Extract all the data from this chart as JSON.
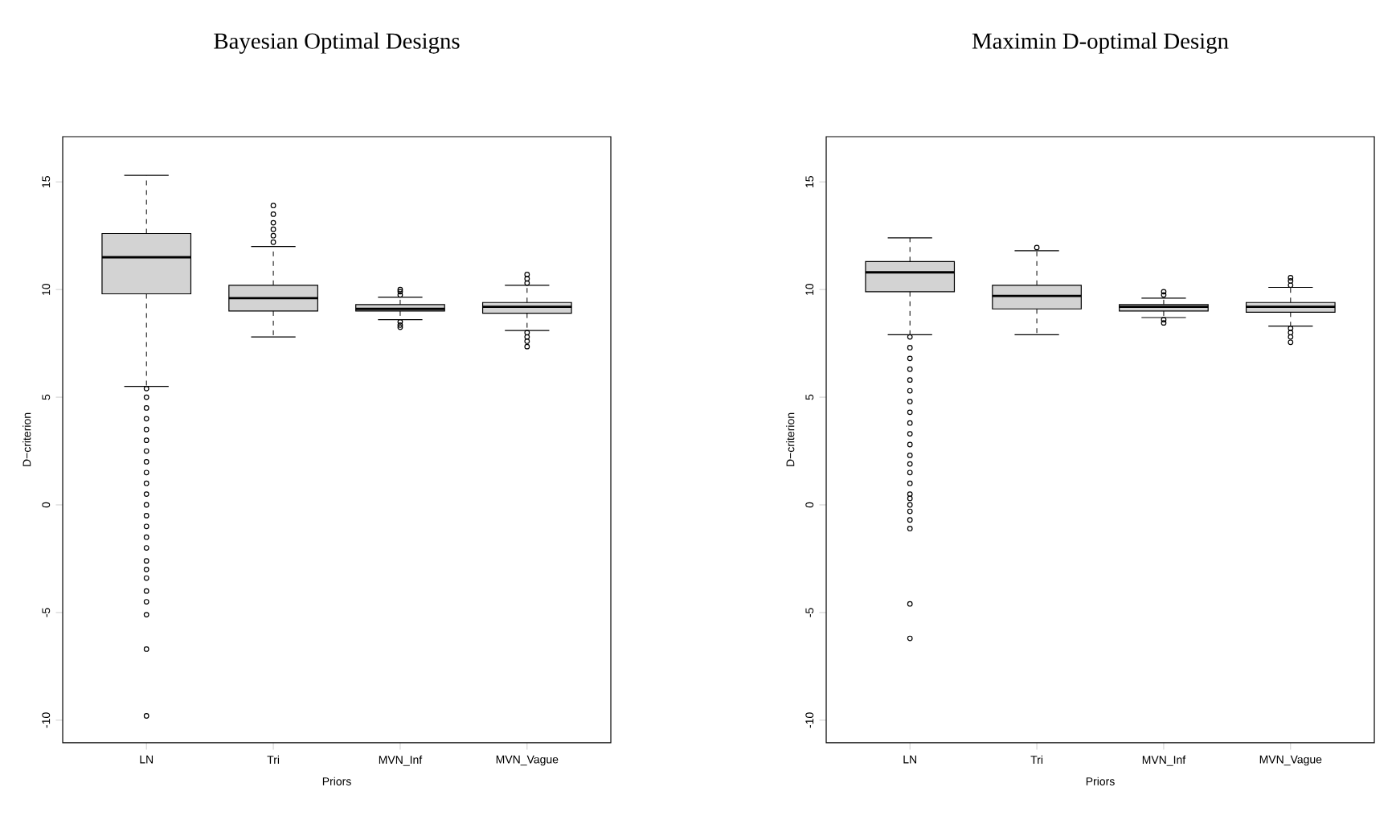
{
  "chart_data": [
    {
      "type": "box",
      "title": "Bayesian Optimal Designs",
      "xlabel": "Priors",
      "ylabel": "D−criterion",
      "color": "#d3d3d3",
      "categories": [
        "LN",
        "Tri",
        "MVN_Inf",
        "MVN_Vague"
      ],
      "ylim": [
        -11.05,
        17.1
      ],
      "yticks": [
        -10,
        -5,
        0,
        5,
        10,
        15
      ],
      "boxes": [
        {
          "low": 5.5,
          "q1": 9.8,
          "median": 11.5,
          "q3": 12.6,
          "high": 15.3,
          "outliers": [
            5.4,
            5,
            4.5,
            4,
            3.5,
            3,
            2.5,
            2,
            1.5,
            1,
            0.5,
            0,
            -0.5,
            -1,
            -1.5,
            -2,
            -2.6,
            -3,
            -3.4,
            -4,
            -4.5,
            -5.1,
            -6.7,
            -9.8
          ]
        },
        {
          "low": 7.8,
          "q1": 9.0,
          "median": 9.6,
          "q3": 10.2,
          "high": 12.0,
          "outliers": [
            12.2,
            12.5,
            12.8,
            13.1,
            13.5,
            13.9
          ]
        },
        {
          "low": 8.6,
          "q1": 9.0,
          "median": 9.1,
          "q3": 9.3,
          "high": 9.65,
          "outliers": [
            9.75,
            9.9,
            10.0,
            8.5,
            8.35,
            8.25
          ]
        },
        {
          "low": 8.1,
          "q1": 8.9,
          "median": 9.2,
          "q3": 9.4,
          "high": 10.2,
          "outliers": [
            10.3,
            10.5,
            10.7,
            8.0,
            7.8,
            7.6,
            7.35
          ]
        }
      ]
    },
    {
      "type": "box",
      "title": "Maximin D-optimal Design",
      "xlabel": "Priors",
      "ylabel": "D−criterion",
      "color": "#d3d3d3",
      "categories": [
        "LN",
        "Tri",
        "MVN_Inf",
        "MVN_Vague"
      ],
      "ylim": [
        -11.05,
        17.1
      ],
      "yticks": [
        -10,
        -5,
        0,
        5,
        10,
        15
      ],
      "boxes": [
        {
          "low": 7.9,
          "q1": 9.9,
          "median": 10.8,
          "q3": 11.3,
          "high": 12.4,
          "outliers": [
            7.8,
            7.3,
            6.8,
            6.3,
            5.8,
            5.3,
            4.8,
            4.3,
            3.8,
            3.3,
            2.8,
            2.3,
            1.9,
            1.5,
            1,
            0.5,
            0.3,
            0,
            -0.3,
            -0.7,
            -1.1,
            -4.6,
            -6.2
          ]
        },
        {
          "low": 7.9,
          "q1": 9.1,
          "median": 9.7,
          "q3": 10.2,
          "high": 11.8,
          "outliers": [
            11.95
          ]
        },
        {
          "low": 8.7,
          "q1": 9.0,
          "median": 9.2,
          "q3": 9.3,
          "high": 9.6,
          "outliers": [
            9.75,
            9.9,
            8.6,
            8.45
          ]
        },
        {
          "low": 8.3,
          "q1": 8.95,
          "median": 9.2,
          "q3": 9.4,
          "high": 10.1,
          "outliers": [
            10.2,
            10.4,
            10.55,
            8.2,
            8.0,
            7.8,
            7.55
          ]
        }
      ]
    }
  ]
}
